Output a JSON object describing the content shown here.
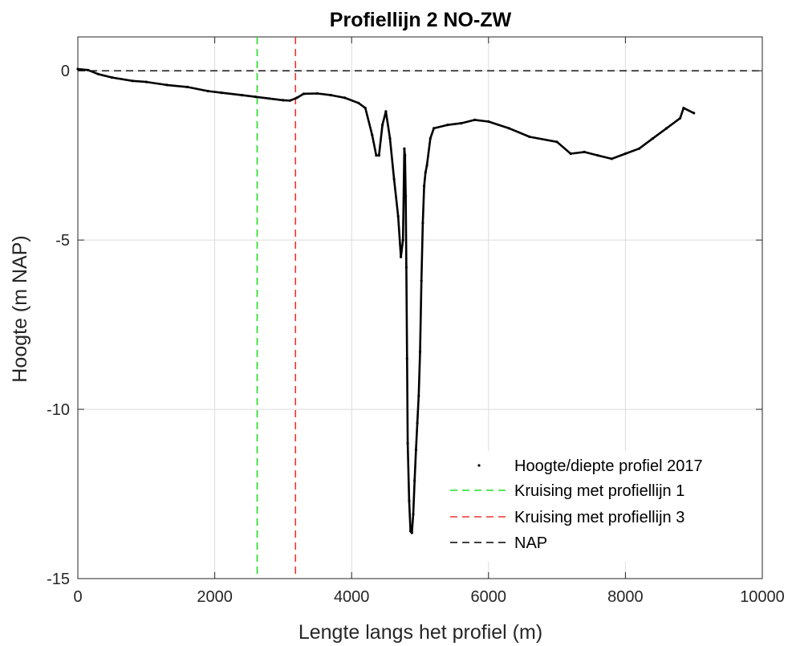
{
  "chart_data": {
    "type": "line",
    "title": "Profiellijn 2 NO-ZW",
    "xlabel": "Lengte langs het profiel (m)",
    "ylabel": "Hoogte (m NAP)",
    "xlim": [
      0,
      10000
    ],
    "ylim": [
      -15,
      1
    ],
    "xticks": [
      0,
      2000,
      4000,
      6000,
      8000,
      10000
    ],
    "xtick_labels": [
      "0",
      "2000",
      "4000",
      "6000",
      "8000",
      "10000"
    ],
    "yticks": [
      0,
      -5,
      -10,
      -15
    ],
    "ytick_labels": [
      "0",
      "-5",
      "-10",
      "-15"
    ],
    "grid": true,
    "legend_position": "bottom-right",
    "series": [
      {
        "name": "Hoogte/diepte profiel 2017",
        "style": "dots",
        "color": "#000000",
        "x": [
          0,
          150,
          300,
          500,
          800,
          1000,
          1300,
          1600,
          1900,
          2100,
          2400,
          2600,
          2800,
          3000,
          3100,
          3200,
          3300,
          3500,
          3700,
          3900,
          4100,
          4200,
          4300,
          4360,
          4400,
          4450,
          4500,
          4560,
          4620,
          4680,
          4720,
          4750,
          4770,
          4780,
          4790,
          4800,
          4810,
          4820,
          4840,
          4860,
          4880,
          4900,
          4920,
          4940,
          4960,
          4980,
          5000,
          5020,
          5040,
          5060,
          5080,
          5100,
          5150,
          5200,
          5400,
          5600,
          5800,
          6000,
          6300,
          6600,
          7000,
          7200,
          7400,
          7600,
          7800,
          8000,
          8200,
          8400,
          8600,
          8800,
          8850,
          9000
        ],
        "y": [
          0.05,
          0.02,
          -0.1,
          -0.2,
          -0.3,
          -0.33,
          -0.42,
          -0.48,
          -0.6,
          -0.65,
          -0.72,
          -0.77,
          -0.82,
          -0.87,
          -0.88,
          -0.8,
          -0.68,
          -0.67,
          -0.72,
          -0.8,
          -0.95,
          -1.1,
          -1.9,
          -2.5,
          -2.5,
          -1.6,
          -1.2,
          -2.0,
          -3.2,
          -4.3,
          -5.5,
          -5.0,
          -2.3,
          -2.5,
          -3.7,
          -5.8,
          -8.5,
          -11.0,
          -12.7,
          -13.6,
          -13.65,
          -13.1,
          -12.1,
          -11.2,
          -10.4,
          -9.6,
          -8.3,
          -6.2,
          -4.5,
          -3.4,
          -3.0,
          -2.8,
          -2.0,
          -1.7,
          -1.6,
          -1.55,
          -1.45,
          -1.5,
          -1.7,
          -1.95,
          -2.1,
          -2.45,
          -2.4,
          -2.5,
          -2.6,
          -2.45,
          -2.3,
          -2.0,
          -1.7,
          -1.4,
          -1.1,
          -1.25
        ]
      },
      {
        "name": "Kruising met profiellijn 1",
        "style": "vline-dashed",
        "color": "#22dd22",
        "x": [
          2620
        ]
      },
      {
        "name": "Kruising met profiellijn 3",
        "style": "vline-dashed",
        "color": "#ee3333",
        "x": [
          3180
        ]
      },
      {
        "name": "NAP",
        "style": "hline-dashed",
        "color": "#000000",
        "y": [
          0
        ]
      }
    ]
  }
}
